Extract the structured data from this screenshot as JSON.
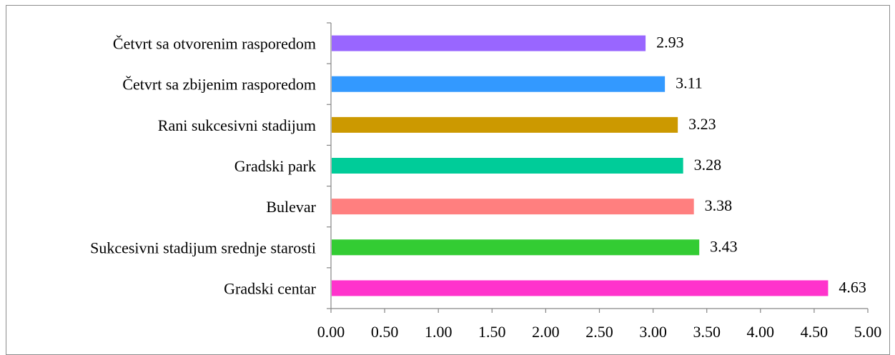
{
  "chart_data": {
    "type": "bar",
    "orientation": "horizontal",
    "categories": [
      "Četvrt sa otvorenim rasporedom",
      "Četvrt sa zbijenim rasporedom",
      "Rani sukcesivni stadijum",
      "Gradski park",
      "Bulevar",
      "Sukcesivni stadijum srednje starosti",
      "Gradski centar"
    ],
    "values": [
      2.93,
      3.11,
      3.23,
      3.28,
      3.38,
      3.43,
      4.63
    ],
    "value_labels": [
      "2.93",
      "3.11",
      "3.23",
      "3.28",
      "3.38",
      "3.43",
      "4.63"
    ],
    "colors": [
      "#9966FF",
      "#3399FF",
      "#CC9900",
      "#00CC99",
      "#FF7F7F",
      "#33CC33",
      "#FF33CC"
    ],
    "xlim": [
      0,
      5
    ],
    "xticks": [
      0,
      0.5,
      1,
      1.5,
      2,
      2.5,
      3,
      3.5,
      4,
      4.5,
      5
    ],
    "xtick_labels": [
      "0.00",
      "0.50",
      "1.00",
      "1.50",
      "2.00",
      "2.50",
      "3.00",
      "3.50",
      "4.00",
      "4.50",
      "5.00"
    ],
    "title": "",
    "xlabel": "",
    "ylabel": "",
    "grid": false,
    "legend": false
  }
}
